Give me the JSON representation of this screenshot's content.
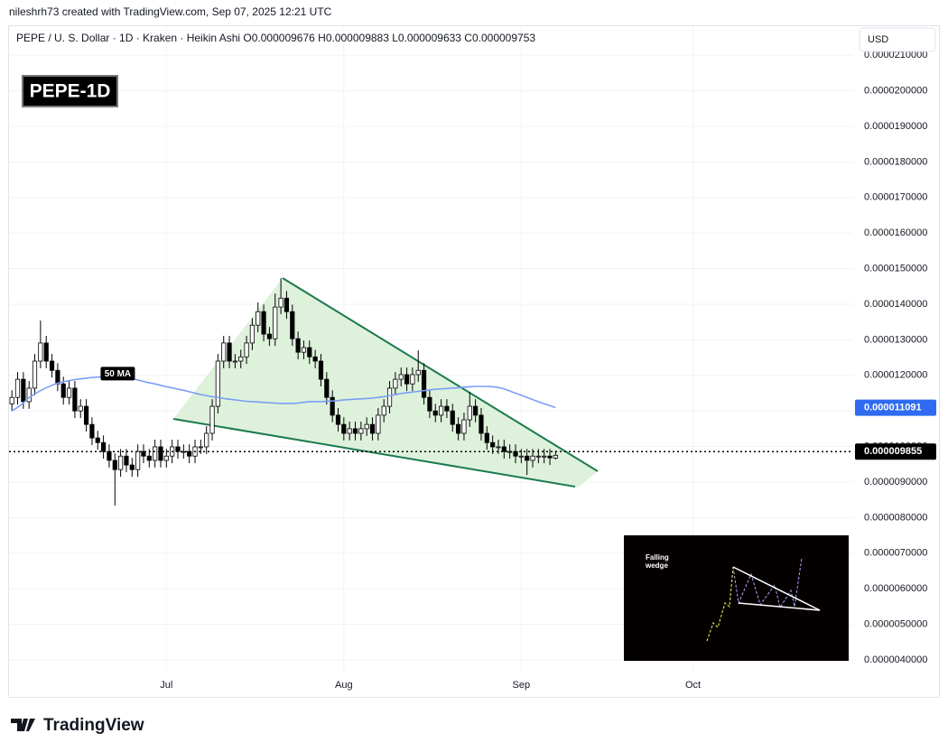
{
  "chart_data": {
    "type": "candlestick",
    "credit": "nileshrh73 created with TradingView.com, Sep 07, 2025 12:21 UTC",
    "header": "PEPE / U. S. Dollar · 1D · Kraken · Heikin Ashi  O0.000009676  H0.000009883  L0.000009633  C0.000009753",
    "badge": "PEPE-1D",
    "currency": "USD",
    "brand": "TradingView",
    "inset_title": [
      "Falling",
      "wedge"
    ],
    "up_color": "#ffffff",
    "down_color": "#000000",
    "wick_color": "#000000",
    "grid": true,
    "xlim": [
      -0.5,
      147
    ],
    "xticks": [
      {
        "value": 27,
        "label": "Jul"
      },
      {
        "value": 58,
        "label": "Aug"
      },
      {
        "value": 89,
        "label": "Sep"
      },
      {
        "value": 119,
        "label": "Oct"
      }
    ],
    "ylim": [
      2.96e-06,
      2.179e-05
    ],
    "yticks": [
      {
        "value": 4e-06,
        "label": "0.0000040000"
      },
      {
        "value": 5e-06,
        "label": "0.0000050000"
      },
      {
        "value": 6e-06,
        "label": "0.0000060000"
      },
      {
        "value": 7e-06,
        "label": "0.0000070000"
      },
      {
        "value": 8e-06,
        "label": "0.0000080000"
      },
      {
        "value": 9e-06,
        "label": "0.0000090000"
      },
      {
        "value": 1e-05,
        "label": "0.0000100000"
      },
      {
        "value": 1.1e-05,
        "label": "0.0000110000"
      },
      {
        "value": 1.2e-05,
        "label": "0.0000120000"
      },
      {
        "value": 1.3e-05,
        "label": "0.0000130000"
      },
      {
        "value": 1.4e-05,
        "label": "0.0000140000"
      },
      {
        "value": 1.5e-05,
        "label": "0.0000150000"
      },
      {
        "value": 1.6e-05,
        "label": "0.0000160000"
      },
      {
        "value": 1.7e-05,
        "label": "0.0000170000"
      },
      {
        "value": 1.8e-05,
        "label": "0.0000180000"
      },
      {
        "value": 1.9e-05,
        "label": "0.0000190000"
      },
      {
        "value": 2e-05,
        "label": "0.0000200000"
      },
      {
        "value": 2.1e-05,
        "label": "0.0000210000"
      }
    ],
    "last_price": 9.855e-06,
    "open": [
      1.12e-05,
      1.138e-05,
      1.189e-05,
      1.126e-05,
      1.164e-05,
      1.24e-05,
      1.291e-05,
      1.24e-05,
      1.214e-05,
      1.176e-05,
      1.138e-05,
      1.164e-05,
      1.1e-05,
      1.113e-05,
      1.062e-05,
      1.024e-05,
      1.011e-05,
      9.86e-06,
      9.61e-06,
      9.35e-06,
      9.73e-06,
      9.48e-06,
      9.35e-06,
      9.86e-06,
      9.73e-06,
      9.61e-06,
      9.99e-06,
      9.61e-06,
      9.73e-06,
      9.99e-06,
      9.86e-06,
      9.86e-06,
      9.73e-06,
      9.99e-06,
      9.99e-06,
      1.037e-05,
      1.113e-05,
      1.24e-05,
      1.291e-05,
      1.24e-05,
      1.24e-05,
      1.252e-05,
      1.291e-05,
      1.341e-05,
      1.379e-05,
      1.316e-05,
      1.303e-05,
      1.392e-05,
      1.417e-05,
      1.379e-05,
      1.303e-05,
      1.265e-05,
      1.278e-05,
      1.252e-05,
      1.24e-05,
      1.189e-05,
      1.138e-05,
      1.088e-05,
      1.062e-05,
      1.037e-05,
      1.05e-05,
      1.037e-05,
      1.05e-05,
      1.062e-05,
      1.037e-05,
      1.088e-05,
      1.113e-05,
      1.164e-05,
      1.189e-05,
      1.202e-05,
      1.176e-05,
      1.202e-05,
      1.214e-05,
      1.138e-05,
      1.1e-05,
      1.088e-05,
      1.113e-05,
      1.1e-05,
      1.062e-05,
      1.037e-05,
      1.075e-05,
      1.113e-05,
      1.088e-05,
      1.037e-05,
      1.011e-05,
      9.99e-06,
      9.99e-06,
      9.86e-06,
      9.86e-06,
      9.73e-06,
      9.73e-06,
      9.61e-06,
      9.73e-06,
      9.73e-06,
      9.73e-06,
      9.676e-06
    ],
    "high": [
      1.158e-05,
      1.209e-05,
      1.209e-05,
      1.184e-05,
      1.26e-05,
      1.354e-05,
      1.311e-05,
      1.26e-05,
      1.234e-05,
      1.196e-05,
      1.184e-05,
      1.184e-05,
      1.133e-05,
      1.133e-05,
      1.082e-05,
      1.044e-05,
      1.031e-05,
      1.006e-05,
      9.81e-06,
      9.93e-06,
      9.93e-06,
      9.68e-06,
      1.006e-05,
      1.006e-05,
      9.93e-06,
      1.019e-05,
      1.019e-05,
      9.93e-06,
      1.019e-05,
      1.019e-05,
      1.006e-05,
      1.006e-05,
      1.019e-05,
      1.019e-05,
      1.057e-05,
      1.133e-05,
      1.26e-05,
      1.311e-05,
      1.311e-05,
      1.26e-05,
      1.272e-05,
      1.311e-05,
      1.361e-05,
      1.405e-05,
      1.399e-05,
      1.336e-05,
      1.43e-05,
      1.473e-05,
      1.437e-05,
      1.399e-05,
      1.323e-05,
      1.298e-05,
      1.298e-05,
      1.272e-05,
      1.26e-05,
      1.209e-05,
      1.158e-05,
      1.108e-05,
      1.082e-05,
      1.07e-05,
      1.07e-05,
      1.07e-05,
      1.082e-05,
      1.082e-05,
      1.108e-05,
      1.133e-05,
      1.184e-05,
      1.209e-05,
      1.222e-05,
      1.222e-05,
      1.222e-05,
      1.27e-05,
      1.234e-05,
      1.158e-05,
      1.12e-05,
      1.133e-05,
      1.133e-05,
      1.12e-05,
      1.082e-05,
      1.095e-05,
      1.153e-05,
      1.133e-05,
      1.108e-05,
      1.057e-05,
      1.031e-05,
      1.019e-05,
      1.019e-05,
      1.006e-05,
      1.006e-05,
      9.93e-06,
      9.93e-06,
      9.93e-06,
      9.93e-06,
      9.93e-06,
      9.93e-06,
      9.883e-06
    ],
    "low": [
      1.1e-05,
      1.118e-05,
      1.106e-05,
      1.106e-05,
      1.144e-05,
      1.22e-05,
      1.22e-05,
      1.194e-05,
      1.156e-05,
      1.118e-05,
      1.118e-05,
      1.08e-05,
      1.08e-05,
      1.042e-05,
      1.004e-05,
      9.91e-06,
      9.66e-06,
      9.41e-06,
      8.34e-06,
      9.15e-06,
      9.28e-06,
      9.15e-06,
      9.15e-06,
      9.53e-06,
      9.41e-06,
      9.41e-06,
      9.41e-06,
      9.41e-06,
      9.53e-06,
      9.66e-06,
      9.66e-06,
      9.53e-06,
      9.53e-06,
      9.79e-06,
      9.79e-06,
      1.017e-05,
      1.093e-05,
      1.22e-05,
      1.22e-05,
      1.22e-05,
      1.22e-05,
      1.232e-05,
      1.271e-05,
      1.321e-05,
      1.296e-05,
      1.283e-05,
      1.283e-05,
      1.372e-05,
      1.359e-05,
      1.283e-05,
      1.245e-05,
      1.245e-05,
      1.232e-05,
      1.22e-05,
      1.169e-05,
      1.118e-05,
      1.068e-05,
      1.042e-05,
      1.017e-05,
      1.017e-05,
      1.017e-05,
      1.017e-05,
      1.03e-05,
      1.017e-05,
      1.017e-05,
      1.068e-05,
      1.093e-05,
      1.144e-05,
      1.169e-05,
      1.156e-05,
      1.156e-05,
      1.182e-05,
      1.118e-05,
      1.08e-05,
      1.068e-05,
      1.068e-05,
      1.08e-05,
      1.042e-05,
      1.017e-05,
      1.017e-05,
      1.055e-05,
      1.068e-05,
      1.017e-05,
      9.91e-06,
      9.79e-06,
      9.79e-06,
      9.66e-06,
      9.66e-06,
      9.53e-06,
      9.53e-06,
      9.2e-06,
      9.41e-06,
      9.53e-06,
      9.53e-06,
      9.48e-06,
      9.633e-06
    ],
    "close": [
      1.138e-05,
      1.189e-05,
      1.126e-05,
      1.164e-05,
      1.24e-05,
      1.291e-05,
      1.24e-05,
      1.214e-05,
      1.176e-05,
      1.138e-05,
      1.164e-05,
      1.1e-05,
      1.113e-05,
      1.062e-05,
      1.024e-05,
      1.011e-05,
      9.86e-06,
      9.61e-06,
      9.35e-06,
      9.73e-06,
      9.48e-06,
      9.35e-06,
      9.86e-06,
      9.73e-06,
      9.61e-06,
      9.99e-06,
      9.61e-06,
      9.73e-06,
      9.99e-06,
      9.86e-06,
      9.86e-06,
      9.73e-06,
      9.99e-06,
      9.99e-06,
      1.037e-05,
      1.113e-05,
      1.24e-05,
      1.291e-05,
      1.24e-05,
      1.24e-05,
      1.252e-05,
      1.291e-05,
      1.341e-05,
      1.379e-05,
      1.316e-05,
      1.303e-05,
      1.392e-05,
      1.417e-05,
      1.379e-05,
      1.303e-05,
      1.265e-05,
      1.278e-05,
      1.252e-05,
      1.24e-05,
      1.189e-05,
      1.138e-05,
      1.088e-05,
      1.062e-05,
      1.037e-05,
      1.05e-05,
      1.037e-05,
      1.05e-05,
      1.062e-05,
      1.037e-05,
      1.088e-05,
      1.113e-05,
      1.164e-05,
      1.189e-05,
      1.202e-05,
      1.176e-05,
      1.202e-05,
      1.214e-05,
      1.138e-05,
      1.1e-05,
      1.088e-05,
      1.113e-05,
      1.1e-05,
      1.062e-05,
      1.037e-05,
      1.075e-05,
      1.113e-05,
      1.088e-05,
      1.037e-05,
      1.011e-05,
      9.99e-06,
      9.99e-06,
      9.86e-06,
      9.86e-06,
      9.73e-06,
      9.73e-06,
      9.61e-06,
      9.73e-06,
      9.73e-06,
      9.73e-06,
      9.68e-06,
      9.753e-06
    ],
    "ma": {
      "name": "50 MA",
      "color": "#7a9ef5",
      "label_color": "#2f6bf0",
      "values": [
        1.1e-05,
        1.11e-05,
        1.122e-05,
        1.138e-05,
        1.148e-05,
        1.157e-05,
        1.165e-05,
        1.172e-05,
        1.178e-05,
        1.182e-05,
        1.185e-05,
        1.188e-05,
        1.19e-05,
        1.192e-05,
        1.194e-05,
        1.195e-05,
        1.196e-05,
        1.196e-05,
        1.196e-05,
        1.195e-05,
        1.194e-05,
        1.191e-05,
        1.187e-05,
        1.183e-05,
        1.179e-05,
        1.176e-05,
        1.172e-05,
        1.168e-05,
        1.165e-05,
        1.161e-05,
        1.158e-05,
        1.154e-05,
        1.15e-05,
        1.146e-05,
        1.143e-05,
        1.14e-05,
        1.138e-05,
        1.135e-05,
        1.133e-05,
        1.131e-05,
        1.129e-05,
        1.127e-05,
        1.126e-05,
        1.125e-05,
        1.124e-05,
        1.123e-05,
        1.122e-05,
        1.121e-05,
        1.121e-05,
        1.121e-05,
        1.122e-05,
        1.124e-05,
        1.126e-05,
        1.126e-05,
        1.126e-05,
        1.127e-05,
        1.128e-05,
        1.129e-05,
        1.131e-05,
        1.132e-05,
        1.133e-05,
        1.134e-05,
        1.135e-05,
        1.136e-05,
        1.138e-05,
        1.14e-05,
        1.143e-05,
        1.146e-05,
        1.149e-05,
        1.151e-05,
        1.153e-05,
        1.155e-05,
        1.157e-05,
        1.159e-05,
        1.161e-05,
        1.162e-05,
        1.163e-05,
        1.164e-05,
        1.165e-05,
        1.167e-05,
        1.168e-05,
        1.169e-05,
        1.169e-05,
        1.169e-05,
        1.168e-05,
        1.166e-05,
        1.162e-05,
        1.156e-05,
        1.15e-05,
        1.144e-05,
        1.138e-05,
        1.132e-05,
        1.126e-05,
        1.12e-05,
        1.115e-05,
        1.1091e-05
      ]
    }
  }
}
